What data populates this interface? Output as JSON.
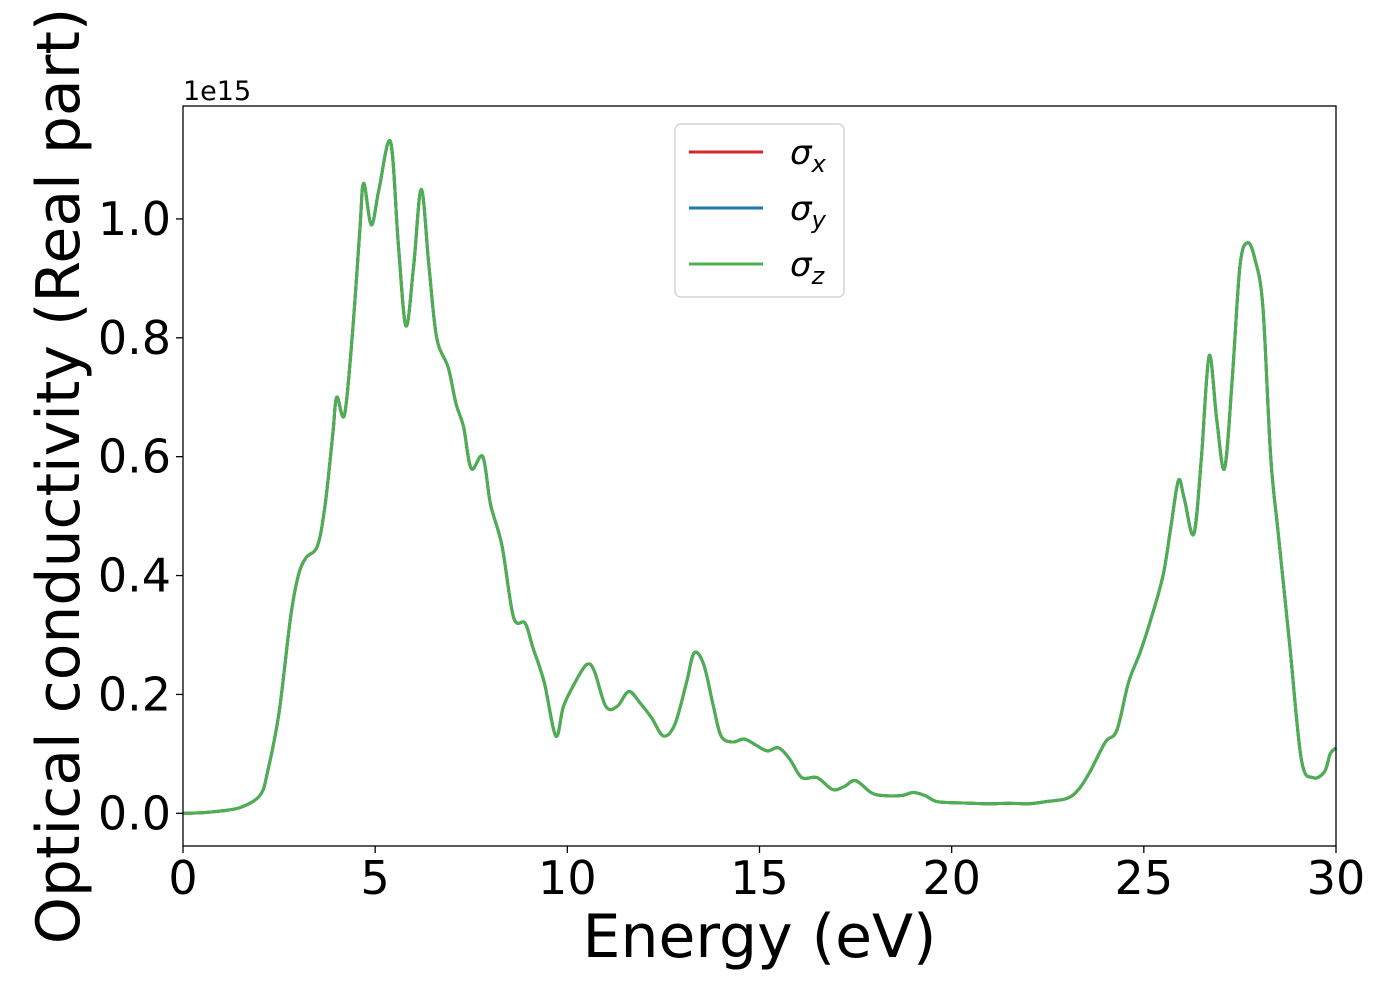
{
  "colors": {
    "sigma_x": "#d62728",
    "sigma_y": "#1f77b4",
    "sigma_z": "#4caf50"
  },
  "chart_data": {
    "type": "line",
    "title": "",
    "xlabel": "Energy (eV)",
    "ylabel": "Optical conductivity (Real part)",
    "y_offset_label": "1e15",
    "xlim": [
      0,
      30
    ],
    "ylim": [
      -0.055,
      1.19
    ],
    "y_scale_factor": 1000000000000000.0,
    "grid": false,
    "legend_position": "top-center",
    "xticks": [
      0,
      5,
      10,
      15,
      20,
      25,
      30
    ],
    "xtick_labels": [
      "0",
      "5",
      "10",
      "15",
      "20",
      "25",
      "30"
    ],
    "yticks": [
      0.0,
      0.2,
      0.4,
      0.6,
      0.8,
      1.0
    ],
    "ytick_labels": [
      "0.0",
      "0.2",
      "0.4",
      "0.6",
      "0.8",
      "1.0"
    ],
    "legend": [
      {
        "symbol": "σ",
        "subscript": "x"
      },
      {
        "symbol": "σ",
        "subscript": "y"
      },
      {
        "symbol": "σ",
        "subscript": "z"
      }
    ],
    "x": [
      0,
      0.5,
      1.0,
      1.5,
      2.0,
      2.2,
      2.5,
      2.8,
      3.0,
      3.2,
      3.5,
      3.7,
      3.9,
      4.0,
      4.2,
      4.4,
      4.6,
      4.7,
      4.9,
      5.1,
      5.4,
      5.6,
      5.8,
      6.0,
      6.2,
      6.4,
      6.6,
      6.9,
      7.1,
      7.3,
      7.5,
      7.8,
      8.0,
      8.3,
      8.6,
      8.9,
      9.1,
      9.4,
      9.7,
      9.9,
      10.2,
      10.5,
      10.7,
      11.0,
      11.3,
      11.6,
      11.9,
      12.2,
      12.5,
      12.8,
      13.1,
      13.3,
      13.55,
      13.8,
      14.0,
      14.3,
      14.6,
      14.9,
      15.2,
      15.5,
      15.8,
      16.1,
      16.5,
      16.9,
      17.2,
      17.5,
      17.9,
      18.2,
      18.7,
      19.0,
      19.3,
      19.6,
      20.0,
      20.5,
      21.0,
      21.5,
      22.0,
      22.5,
      23.0,
      23.3,
      23.6,
      24.0,
      24.3,
      24.6,
      24.9,
      25.2,
      25.5,
      25.7,
      25.9,
      26.05,
      26.3,
      26.5,
      26.7,
      26.9,
      27.1,
      27.3,
      27.5,
      27.7,
      27.9,
      28.1,
      28.3,
      28.5,
      28.8,
      29.1,
      29.4,
      29.7,
      29.85,
      30.0
    ],
    "series": [
      {
        "name": "σx",
        "values": [
          0.0,
          0.001,
          0.004,
          0.01,
          0.03,
          0.07,
          0.17,
          0.33,
          0.4,
          0.43,
          0.45,
          0.52,
          0.64,
          0.7,
          0.67,
          0.8,
          0.98,
          1.06,
          0.99,
          1.05,
          1.13,
          0.96,
          0.82,
          0.92,
          1.05,
          0.92,
          0.8,
          0.75,
          0.69,
          0.65,
          0.58,
          0.6,
          0.52,
          0.45,
          0.33,
          0.32,
          0.28,
          0.22,
          0.13,
          0.18,
          0.22,
          0.25,
          0.24,
          0.18,
          0.18,
          0.205,
          0.185,
          0.16,
          0.13,
          0.15,
          0.22,
          0.27,
          0.25,
          0.18,
          0.13,
          0.12,
          0.125,
          0.115,
          0.105,
          0.11,
          0.09,
          0.06,
          0.06,
          0.04,
          0.045,
          0.055,
          0.035,
          0.03,
          0.03,
          0.035,
          0.03,
          0.02,
          0.018,
          0.017,
          0.016,
          0.017,
          0.016,
          0.02,
          0.025,
          0.04,
          0.07,
          0.12,
          0.14,
          0.22,
          0.27,
          0.33,
          0.4,
          0.48,
          0.56,
          0.53,
          0.47,
          0.6,
          0.77,
          0.66,
          0.58,
          0.73,
          0.92,
          0.96,
          0.93,
          0.85,
          0.6,
          0.47,
          0.28,
          0.09,
          0.06,
          0.07,
          0.1,
          0.11
        ]
      },
      {
        "name": "σy",
        "values": [
          0.0,
          0.001,
          0.004,
          0.01,
          0.03,
          0.07,
          0.17,
          0.33,
          0.4,
          0.43,
          0.45,
          0.52,
          0.64,
          0.7,
          0.67,
          0.8,
          0.98,
          1.06,
          0.99,
          1.05,
          1.13,
          0.96,
          0.82,
          0.92,
          1.05,
          0.92,
          0.8,
          0.75,
          0.69,
          0.65,
          0.58,
          0.6,
          0.52,
          0.45,
          0.33,
          0.32,
          0.28,
          0.22,
          0.13,
          0.18,
          0.22,
          0.25,
          0.24,
          0.18,
          0.18,
          0.205,
          0.185,
          0.16,
          0.13,
          0.15,
          0.22,
          0.27,
          0.25,
          0.18,
          0.13,
          0.12,
          0.125,
          0.115,
          0.105,
          0.11,
          0.09,
          0.06,
          0.06,
          0.04,
          0.045,
          0.055,
          0.035,
          0.03,
          0.03,
          0.035,
          0.03,
          0.02,
          0.018,
          0.017,
          0.016,
          0.017,
          0.016,
          0.02,
          0.025,
          0.04,
          0.07,
          0.12,
          0.14,
          0.22,
          0.27,
          0.33,
          0.4,
          0.48,
          0.56,
          0.53,
          0.47,
          0.6,
          0.77,
          0.66,
          0.58,
          0.73,
          0.92,
          0.96,
          0.93,
          0.85,
          0.6,
          0.47,
          0.28,
          0.09,
          0.06,
          0.07,
          0.1,
          0.11
        ]
      },
      {
        "name": "σz",
        "values": [
          0.0,
          0.001,
          0.004,
          0.01,
          0.03,
          0.07,
          0.17,
          0.33,
          0.4,
          0.43,
          0.45,
          0.52,
          0.64,
          0.7,
          0.67,
          0.8,
          0.98,
          1.06,
          0.99,
          1.05,
          1.13,
          0.96,
          0.82,
          0.92,
          1.05,
          0.92,
          0.8,
          0.75,
          0.69,
          0.65,
          0.58,
          0.6,
          0.52,
          0.45,
          0.33,
          0.32,
          0.28,
          0.22,
          0.13,
          0.18,
          0.22,
          0.25,
          0.24,
          0.18,
          0.18,
          0.205,
          0.185,
          0.16,
          0.13,
          0.15,
          0.22,
          0.27,
          0.25,
          0.18,
          0.13,
          0.12,
          0.125,
          0.115,
          0.105,
          0.11,
          0.09,
          0.06,
          0.06,
          0.04,
          0.045,
          0.055,
          0.035,
          0.03,
          0.03,
          0.035,
          0.03,
          0.02,
          0.018,
          0.017,
          0.016,
          0.017,
          0.016,
          0.02,
          0.025,
          0.04,
          0.07,
          0.12,
          0.14,
          0.22,
          0.27,
          0.33,
          0.4,
          0.48,
          0.56,
          0.53,
          0.47,
          0.6,
          0.77,
          0.66,
          0.58,
          0.73,
          0.92,
          0.96,
          0.93,
          0.85,
          0.6,
          0.47,
          0.28,
          0.09,
          0.06,
          0.07,
          0.1,
          0.11
        ]
      }
    ]
  }
}
